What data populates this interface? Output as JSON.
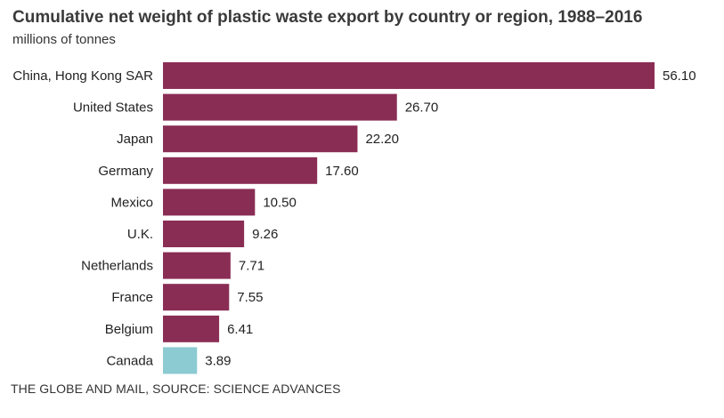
{
  "chart_data": {
    "type": "bar",
    "orientation": "horizontal",
    "title": "Cumulative net weight of plastic waste export by country or region, 1988–2016",
    "subtitle": "millions of tonnes",
    "categories": [
      "China, Hong Kong SAR",
      "United States",
      "Japan",
      "Germany",
      "Mexico",
      "U.K.",
      "Netherlands",
      "France",
      "Belgium",
      "Canada"
    ],
    "values": [
      56.1,
      26.7,
      22.2,
      17.6,
      10.5,
      9.26,
      7.71,
      7.55,
      6.41,
      3.89
    ],
    "value_labels": [
      "56.10",
      "26.70",
      "22.20",
      "17.60",
      "10.50",
      "9.26",
      "7.71",
      "7.55",
      "6.41",
      "3.89"
    ],
    "colors": [
      "#8a2d55",
      "#8a2d55",
      "#8a2d55",
      "#8a2d55",
      "#8a2d55",
      "#8a2d55",
      "#8a2d55",
      "#8a2d55",
      "#8a2d55",
      "#8ccbd2"
    ],
    "xlim": [
      0,
      56.1
    ],
    "grid": false,
    "legend": "none"
  },
  "footer": "THE GLOBE AND MAIL, SOURCE: SCIENCE ADVANCES"
}
